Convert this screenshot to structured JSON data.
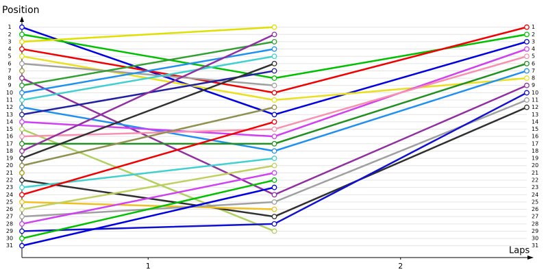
{
  "chart_data": {
    "type": "line",
    "title": "Position",
    "x_label": "Laps",
    "x": [
      0,
      1,
      2
    ],
    "xlim": [
      0,
      2
    ],
    "xticks": [
      {
        "value": 0.5,
        "label": "1"
      },
      {
        "value": 1.5,
        "label": "2"
      }
    ],
    "ylim": [
      33,
      0
    ],
    "yticks": [
      1,
      2,
      3,
      4,
      5,
      6,
      7,
      8,
      9,
      10,
      11,
      12,
      13,
      14,
      15,
      16,
      17,
      18,
      19,
      20,
      21,
      22,
      23,
      24,
      25,
      26,
      27,
      28,
      29,
      30,
      31
    ],
    "grid": true,
    "series": [
      {
        "color": "#0000e0",
        "values": [
          1,
          13,
          3
        ]
      },
      {
        "color": "#00c000",
        "values": [
          2,
          8,
          2
        ]
      },
      {
        "color": "#e0e000",
        "values": [
          3,
          1,
          null
        ]
      },
      {
        "color": "#f00000",
        "values": [
          4,
          10,
          1
        ]
      },
      {
        "color": "#e8e020",
        "values": [
          5,
          11,
          8
        ]
      },
      {
        "color": "#a0a0a0",
        "values": [
          6,
          9,
          null
        ]
      },
      {
        "color": "#a0a040",
        "values": [
          7,
          null,
          null
        ]
      },
      {
        "color": "#9030a0",
        "values": [
          8,
          24,
          9
        ]
      },
      {
        "color": "#30a030",
        "values": [
          9,
          3,
          null
        ]
      },
      {
        "color": "#2090f0",
        "values": [
          10,
          4,
          null
        ]
      },
      {
        "color": "#40d0d0",
        "values": [
          11,
          5,
          null
        ]
      },
      {
        "color": "#2090f0",
        "values": [
          12,
          18,
          7
        ]
      },
      {
        "color": "#2020a0",
        "values": [
          13,
          7,
          null
        ]
      },
      {
        "color": "#d040f0",
        "values": [
          14,
          16,
          4
        ]
      },
      {
        "color": "#b0d060",
        "values": [
          15,
          29,
          null
        ]
      },
      {
        "color": "#f890b0",
        "values": [
          16,
          15,
          5
        ]
      },
      {
        "color": "#209020",
        "values": [
          17,
          17,
          6
        ]
      },
      {
        "color": "#9030a0",
        "values": [
          18,
          2,
          null
        ]
      },
      {
        "color": "#303030",
        "values": [
          19,
          6,
          null
        ]
      },
      {
        "color": "#909050",
        "values": [
          20,
          12,
          null
        ]
      },
      {
        "color": "#a0a000",
        "values": [
          21,
          null,
          null
        ]
      },
      {
        "color": "#303030",
        "values": [
          22,
          27,
          12
        ]
      },
      {
        "color": "#40d0d0",
        "values": [
          23,
          19,
          null
        ]
      },
      {
        "color": "#f00000",
        "values": [
          24,
          14,
          null
        ]
      },
      {
        "color": "#f0c020",
        "values": [
          25,
          26,
          null
        ]
      },
      {
        "color": "#c0d060",
        "values": [
          26,
          20,
          null
        ]
      },
      {
        "color": "#a0a0a0",
        "values": [
          27,
          25,
          11
        ]
      },
      {
        "color": "#d040f0",
        "values": [
          28,
          21,
          null
        ]
      },
      {
        "color": "#1010d0",
        "values": [
          29,
          28,
          10
        ]
      },
      {
        "color": "#00c000",
        "values": [
          30,
          22,
          null
        ]
      },
      {
        "color": "#0000e0",
        "values": [
          31,
          23,
          null
        ]
      }
    ]
  }
}
